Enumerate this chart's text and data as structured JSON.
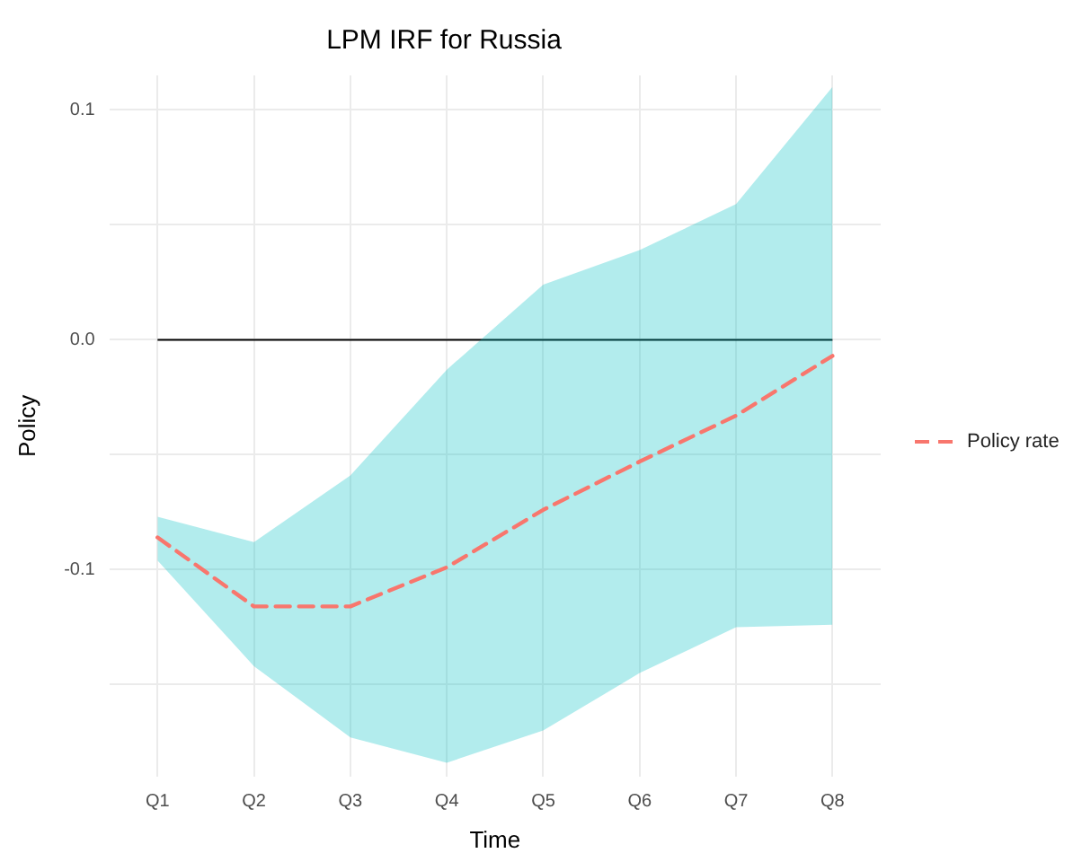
{
  "chart_data": {
    "type": "line",
    "title": "LPM IRF for Russia",
    "xlabel": "Time",
    "ylabel": "Policy",
    "categories": [
      "Q1",
      "Q2",
      "Q3",
      "Q4",
      "Q5",
      "Q6",
      "Q7",
      "Q8"
    ],
    "series": [
      {
        "name": "Policy rate",
        "color": "#f8766d",
        "line_style": "dashed",
        "values": [
          -0.086,
          -0.116,
          -0.116,
          -0.099,
          -0.074,
          -0.053,
          -0.033,
          -0.007
        ],
        "lower": [
          -0.096,
          -0.142,
          -0.173,
          -0.184,
          -0.17,
          -0.145,
          -0.125,
          -0.124
        ],
        "upper": [
          -0.077,
          -0.088,
          -0.059,
          -0.013,
          0.024,
          0.039,
          0.059,
          0.11
        ]
      }
    ],
    "ylim": [
      -0.19,
      0.115
    ],
    "yticks": [
      {
        "value": -0.15,
        "label": null
      },
      -0.1,
      {
        "value": -0.05,
        "label": null
      },
      {
        "value": 0,
        "label": "0.0"
      },
      {
        "value": 0.05,
        "label": null
      },
      0.1
    ],
    "ref_lines": [
      {
        "axis": "y",
        "value": 0,
        "color": "#000000"
      }
    ],
    "grid": true,
    "legend": "right",
    "marker": "none"
  }
}
